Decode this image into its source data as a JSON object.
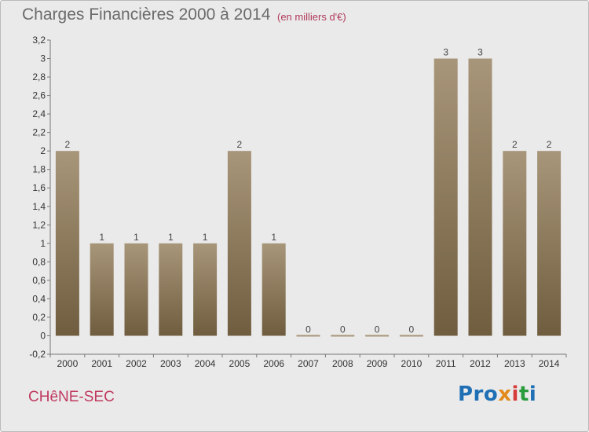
{
  "header": {
    "title": "Charges Financières 2000 à 2014",
    "unit": "(en milliers d'€)"
  },
  "footer": {
    "town": "CHêNE-SEC",
    "logo": {
      "text": "Proxiti",
      "colors": [
        "#1f6fb5",
        "#e28a1b",
        "#d63a3a",
        "#2a9c3b",
        "#1f6fb5"
      ]
    }
  },
  "chart_data": {
    "type": "bar",
    "title": "Charges Financières 2000 à 2014",
    "xlabel": "",
    "ylabel": "",
    "categories": [
      "2000",
      "2001",
      "2002",
      "2003",
      "2004",
      "2005",
      "2006",
      "2007",
      "2008",
      "2009",
      "2010",
      "2011",
      "2012",
      "2013",
      "2014"
    ],
    "values": [
      2,
      1,
      1,
      1,
      1,
      2,
      1,
      0,
      0,
      0,
      0,
      3,
      3,
      2,
      2
    ],
    "value_labels": [
      "2",
      "1",
      "1",
      "1",
      "1",
      "2",
      "1",
      "0",
      "0",
      "0",
      "0",
      "3",
      "3",
      "2",
      "2"
    ],
    "ylim": [
      -0.2,
      3.2
    ],
    "yticks": [
      -0.2,
      0,
      0.2,
      0.4,
      0.6,
      0.8,
      1,
      1.2,
      1.4,
      1.6,
      1.8,
      2,
      2.2,
      2.4,
      2.6,
      2.8,
      3,
      3.2
    ],
    "ytick_labels": [
      "-0,2",
      "0",
      "0,2",
      "0,4",
      "0,6",
      "0,8",
      "1",
      "1,2",
      "1,4",
      "1,6",
      "1,8",
      "2",
      "2,2",
      "2,4",
      "2,6",
      "2,8",
      "3",
      "3,2"
    ],
    "grid": false,
    "legend": "none",
    "bar_color_light": "#a8967a",
    "bar_color_dark": "#705d3f"
  }
}
